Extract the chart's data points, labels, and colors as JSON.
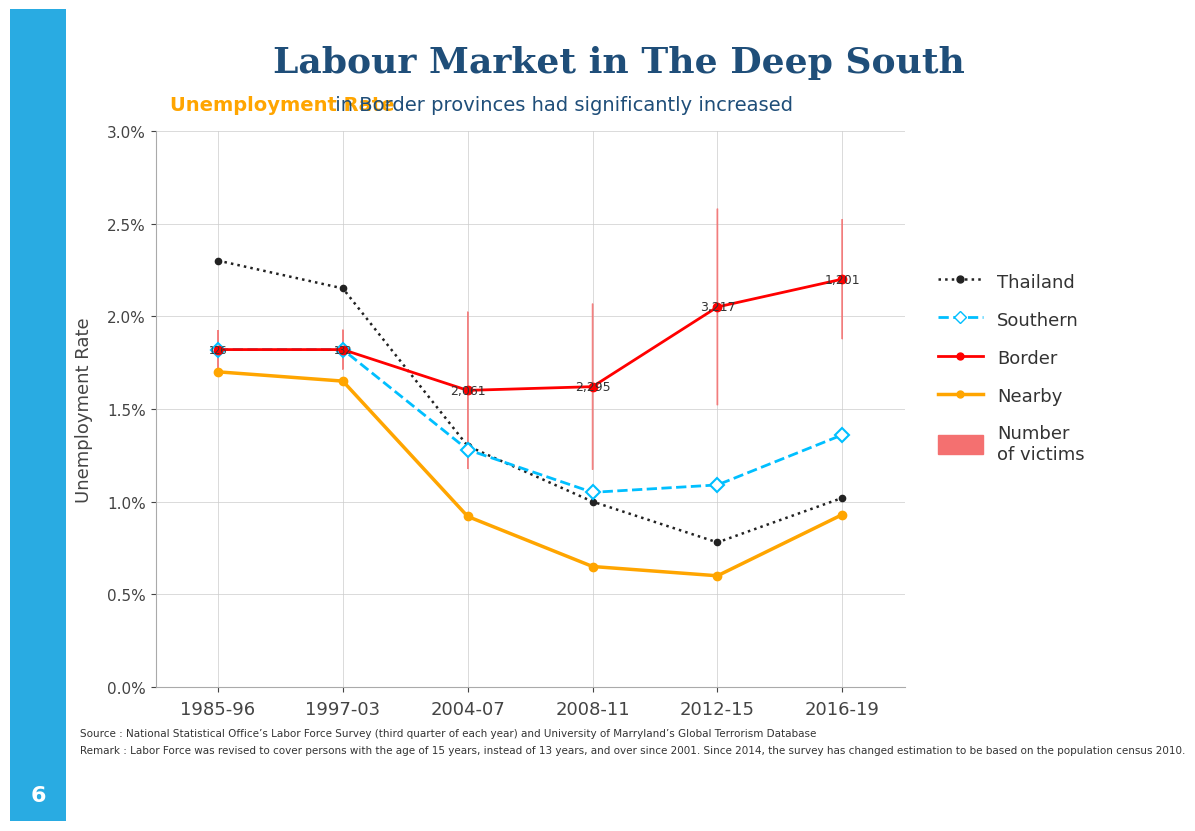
{
  "title": "Labour Market in The Deep South",
  "subtitle_bold": "Unemployment Rate",
  "subtitle_rest": " in Border provinces had significantly increased",
  "x_labels": [
    "1985-96",
    "1997-03",
    "2004-07",
    "2008-11",
    "2012-15",
    "2016-19"
  ],
  "x_positions": [
    0,
    1,
    2,
    3,
    4,
    5
  ],
  "thailand": [
    2.3,
    2.15,
    1.3,
    1.0,
    0.78,
    1.02
  ],
  "southern": [
    1.82,
    1.82,
    1.28,
    1.05,
    1.09,
    1.36
  ],
  "border": [
    1.82,
    1.82,
    1.6,
    1.62,
    2.05,
    2.2
  ],
  "nearby": [
    1.7,
    1.65,
    0.92,
    0.65,
    0.6,
    0.93
  ],
  "victims": [
    126,
    132,
    2061,
    2295,
    3217,
    1201
  ],
  "bubble_x": [
    0,
    1,
    2,
    3,
    4,
    5
  ],
  "bubble_y": [
    1.82,
    1.82,
    1.6,
    1.62,
    2.05,
    2.2
  ],
  "victim_labels": [
    "126",
    "132",
    "2,061",
    "2,295",
    "3,217",
    "1,201"
  ],
  "bubble_color": "#F47070",
  "bubble_alpha": 0.88,
  "thailand_color": "#222222",
  "southern_color": "#00BFFF",
  "border_color": "#FF0000",
  "nearby_color": "#FFA500",
  "title_color": "#1F4E79",
  "subtitle_color_bold": "#FFA500",
  "subtitle_color_rest": "#1F4E79",
  "ylabel": "Unemployment Rate",
  "background_color": "#FFFFFF",
  "left_bar_color": "#29ABE2",
  "source_text": "Source : National Statistical Office’s Labor Force Survey (third quarter of each year) and University of Marryland’s Global Terrorism Database",
  "remark_text": "Remark : Labor Force was revised to cover persons with the age of 15 years, instead of 13 years, and over since 2001. Since 2014, the survey has changed estimation to be based on the population census 2010."
}
